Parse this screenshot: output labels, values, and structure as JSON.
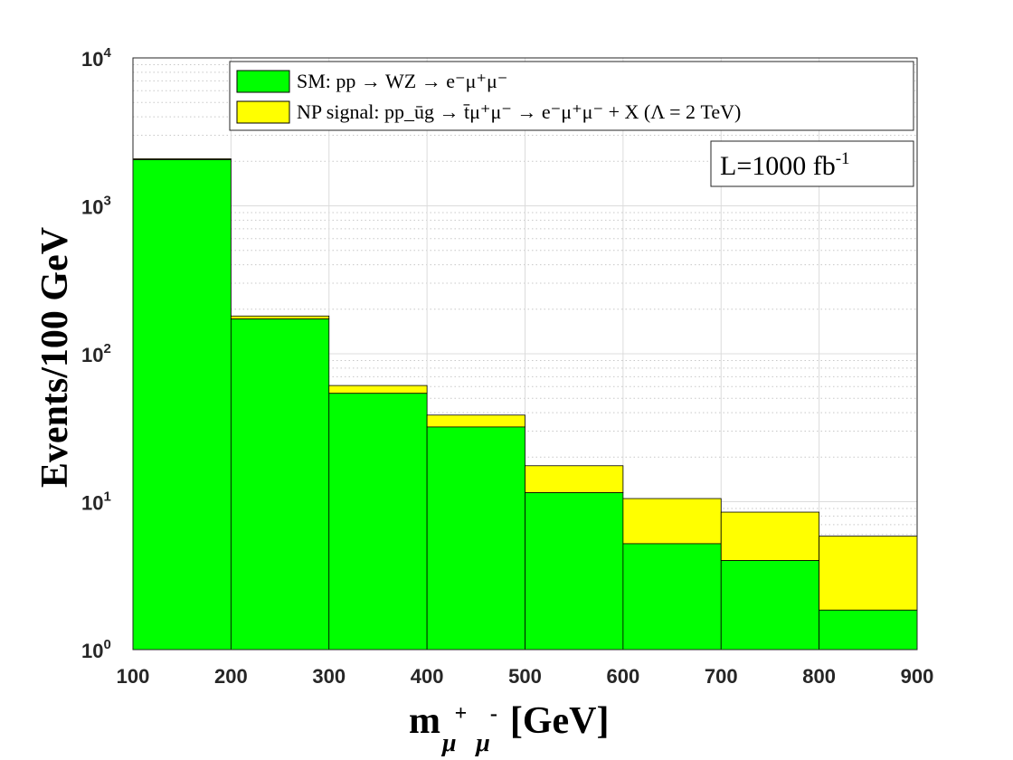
{
  "chart_data": {
    "type": "bar",
    "stacked": true,
    "y_scale": "log",
    "grid": true,
    "legend_position": "top-right",
    "x_edges": [
      100,
      200,
      300,
      400,
      500,
      600,
      700,
      800,
      900
    ],
    "xlim": [
      100,
      900
    ],
    "ylim": [
      1,
      10000
    ],
    "x_ticks": [
      "100",
      "200",
      "300",
      "400",
      "500",
      "600",
      "700",
      "800",
      "900"
    ],
    "y_ticks": [
      {
        "base": "10",
        "exp": "0"
      },
      {
        "base": "10",
        "exp": "1"
      },
      {
        "base": "10",
        "exp": "2"
      },
      {
        "base": "10",
        "exp": "3"
      },
      {
        "base": "10",
        "exp": "4"
      }
    ],
    "series": [
      {
        "name": "SM: pp → WZ → e⁻μ⁺μ⁻",
        "color": "#00ff00",
        "values": [
          2050,
          172,
          54,
          32,
          11.5,
          5.2,
          4.0,
          1.85
        ]
      },
      {
        "name": "NP signal: pp_ūg → t̄μ⁺μ⁻ → e⁻μ⁺μ⁻ + X (Λ = 2 TeV)",
        "color": "#ffff00",
        "values": [
          30,
          8,
          7,
          6.5,
          6,
          5.3,
          4.5,
          4.0
        ]
      }
    ],
    "ylabel": "Events/100 GeV",
    "xlabel": {
      "main": "m",
      "sub1": "μ",
      "sup1": "+",
      "sub2": "μ",
      "sup2": "-",
      "unit": "[GeV]"
    },
    "annotation": {
      "prefix": "L=1000 fb",
      "exp": "-1"
    }
  }
}
